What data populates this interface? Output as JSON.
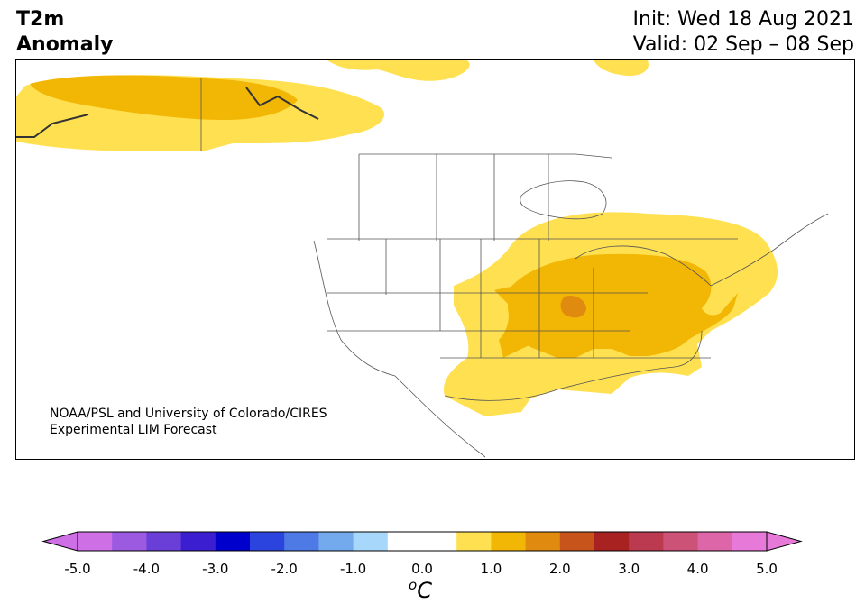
{
  "title": {
    "line1": "T2m",
    "line2": "Anomaly"
  },
  "dates": {
    "init": "Init: Wed 18 Aug 2021",
    "valid": "Valid: 02 Sep – 08 Sep"
  },
  "credit": {
    "line1": "NOAA/PSL and University of Colorado/CIRES",
    "line2": "Experimental LIM Forecast"
  },
  "colorbar": {
    "unit_base": "C",
    "unit_sup": "o",
    "ticks": [
      "-5.0",
      "-4.0",
      "-3.0",
      "-2.0",
      "-1.0",
      "0.0",
      "1.0",
      "2.0",
      "3.0",
      "4.0",
      "5.0"
    ],
    "colors": [
      "#cf6fe6",
      "#9b5ae0",
      "#6a3fd8",
      "#3b1ed0",
      "#0000cd",
      "#2a44dd",
      "#4e7ae5",
      "#73aaee",
      "#a7d8fb",
      "#ffffff",
      "#ffffff",
      "#ffe050",
      "#f2b705",
      "#e08a10",
      "#c7541a",
      "#a82222",
      "#bb3a50",
      "#cc5278",
      "#dc66a8",
      "#e779d8"
    ]
  }
}
